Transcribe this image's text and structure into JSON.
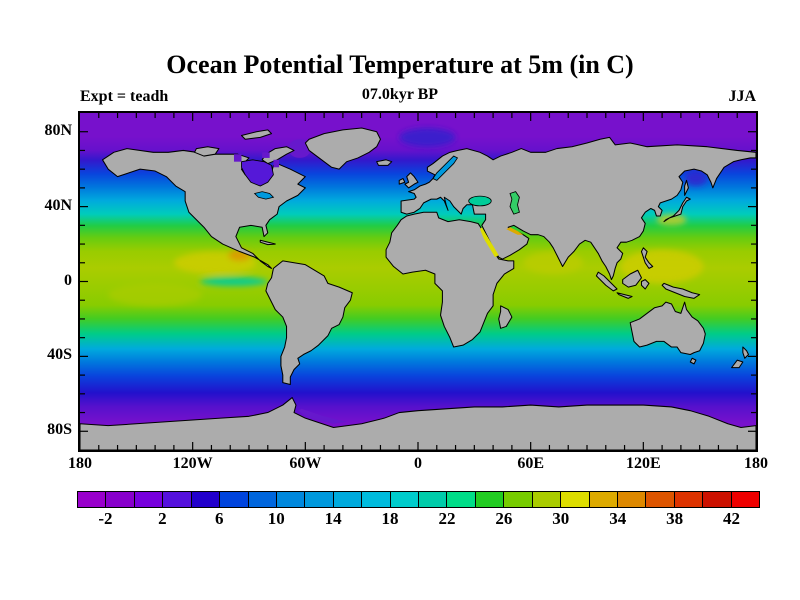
{
  "header": {
    "title": "Ocean Potential Temperature at 5m (in C)",
    "subtitle": "07.0kyr BP",
    "experiment": "Expt = teadh",
    "season": "JJA"
  },
  "colors": {
    "land": "#ACACAC",
    "coastline": "#000000",
    "background": "#FFFFFF"
  },
  "chart_data": {
    "type": "heatmap",
    "title": "Ocean Potential Temperature at 5m (in C)",
    "subtitle": "07.0kyr BP",
    "experiment": "Expt = teadh",
    "season": "JJA",
    "units": "C",
    "depth_m": 5,
    "projection": "equirectangular",
    "lon_range": [
      -180,
      180
    ],
    "lat_range": [
      -90,
      90
    ],
    "grid": false,
    "lat_tick_labels": [
      {
        "label": "80N",
        "lat": 80
      },
      {
        "label": "40N",
        "lat": 40
      },
      {
        "label": "0",
        "lat": 0
      },
      {
        "label": "40S",
        "lat": -40
      },
      {
        "label": "80S",
        "lat": -80
      }
    ],
    "lon_tick_labels": [
      {
        "label": "180",
        "lon": -180
      },
      {
        "label": "120W",
        "lon": -120
      },
      {
        "label": "60W",
        "lon": -60
      },
      {
        "label": "0",
        "lon": 0
      },
      {
        "label": "60E",
        "lon": 60
      },
      {
        "label": "120E",
        "lon": 120
      },
      {
        "label": "180",
        "lon": 180
      }
    ],
    "minor_tick_deg": 10,
    "colorbar": {
      "min": -4,
      "max": 44,
      "step": 2,
      "tick_values": [
        -2,
        2,
        6,
        10,
        14,
        18,
        22,
        26,
        30,
        34,
        38,
        42
      ],
      "palette": [
        "#9900CC",
        "#8800CC",
        "#7700DD",
        "#5511DD",
        "#2200CC",
        "#0044DD",
        "#0066DD",
        "#0088DD",
        "#0099DD",
        "#00AADD",
        "#00BBDD",
        "#00CCCC",
        "#00CCAA",
        "#00DD88",
        "#22CC22",
        "#77CC00",
        "#AACC00",
        "#DDDD00",
        "#DDAA00",
        "#DD8800",
        "#DD5500",
        "#DD3300",
        "#CC1100",
        "#EE0000"
      ]
    },
    "zonal_mean_temperature_c": {
      "lat": [
        85,
        75,
        65,
        55,
        45,
        35,
        25,
        15,
        5,
        0,
        -5,
        -15,
        -25,
        -35,
        -45,
        -55,
        -65,
        -75
      ],
      "value": [
        -1.5,
        -0.5,
        2,
        7,
        13,
        20,
        25,
        28,
        28.5,
        28,
        27.5,
        26,
        22,
        15,
        8,
        2,
        -1,
        -1.5
      ]
    }
  }
}
